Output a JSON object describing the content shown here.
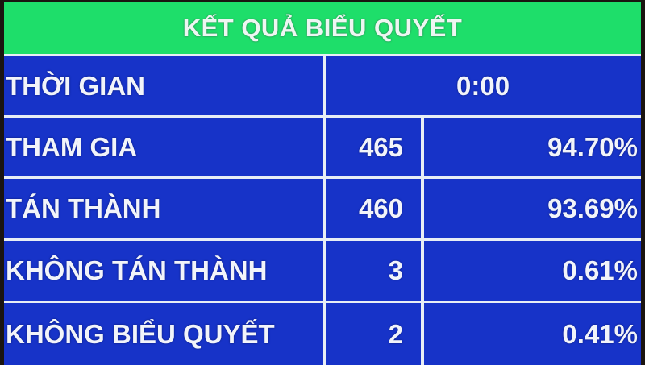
{
  "title": "KẾT QUẢ BIỂU QUYẾT",
  "time": {
    "label": "THỜI GIAN",
    "value": "0:00"
  },
  "rows": [
    {
      "label": "THAM GIA",
      "count": "465",
      "percent": "94.70%"
    },
    {
      "label": "TÁN THÀNH",
      "count": "460",
      "percent": "93.69%"
    },
    {
      "label": "KHÔNG TÁN THÀNH",
      "count": "3",
      "percent": "0.61%"
    },
    {
      "label": "KHÔNG BIỂU QUYẾT",
      "count": "2",
      "percent": "0.41%"
    }
  ],
  "colors": {
    "header": "#1ede6a",
    "cell": "#1733c8",
    "text": "#f2f4fa",
    "grid": "#e8eef5"
  }
}
